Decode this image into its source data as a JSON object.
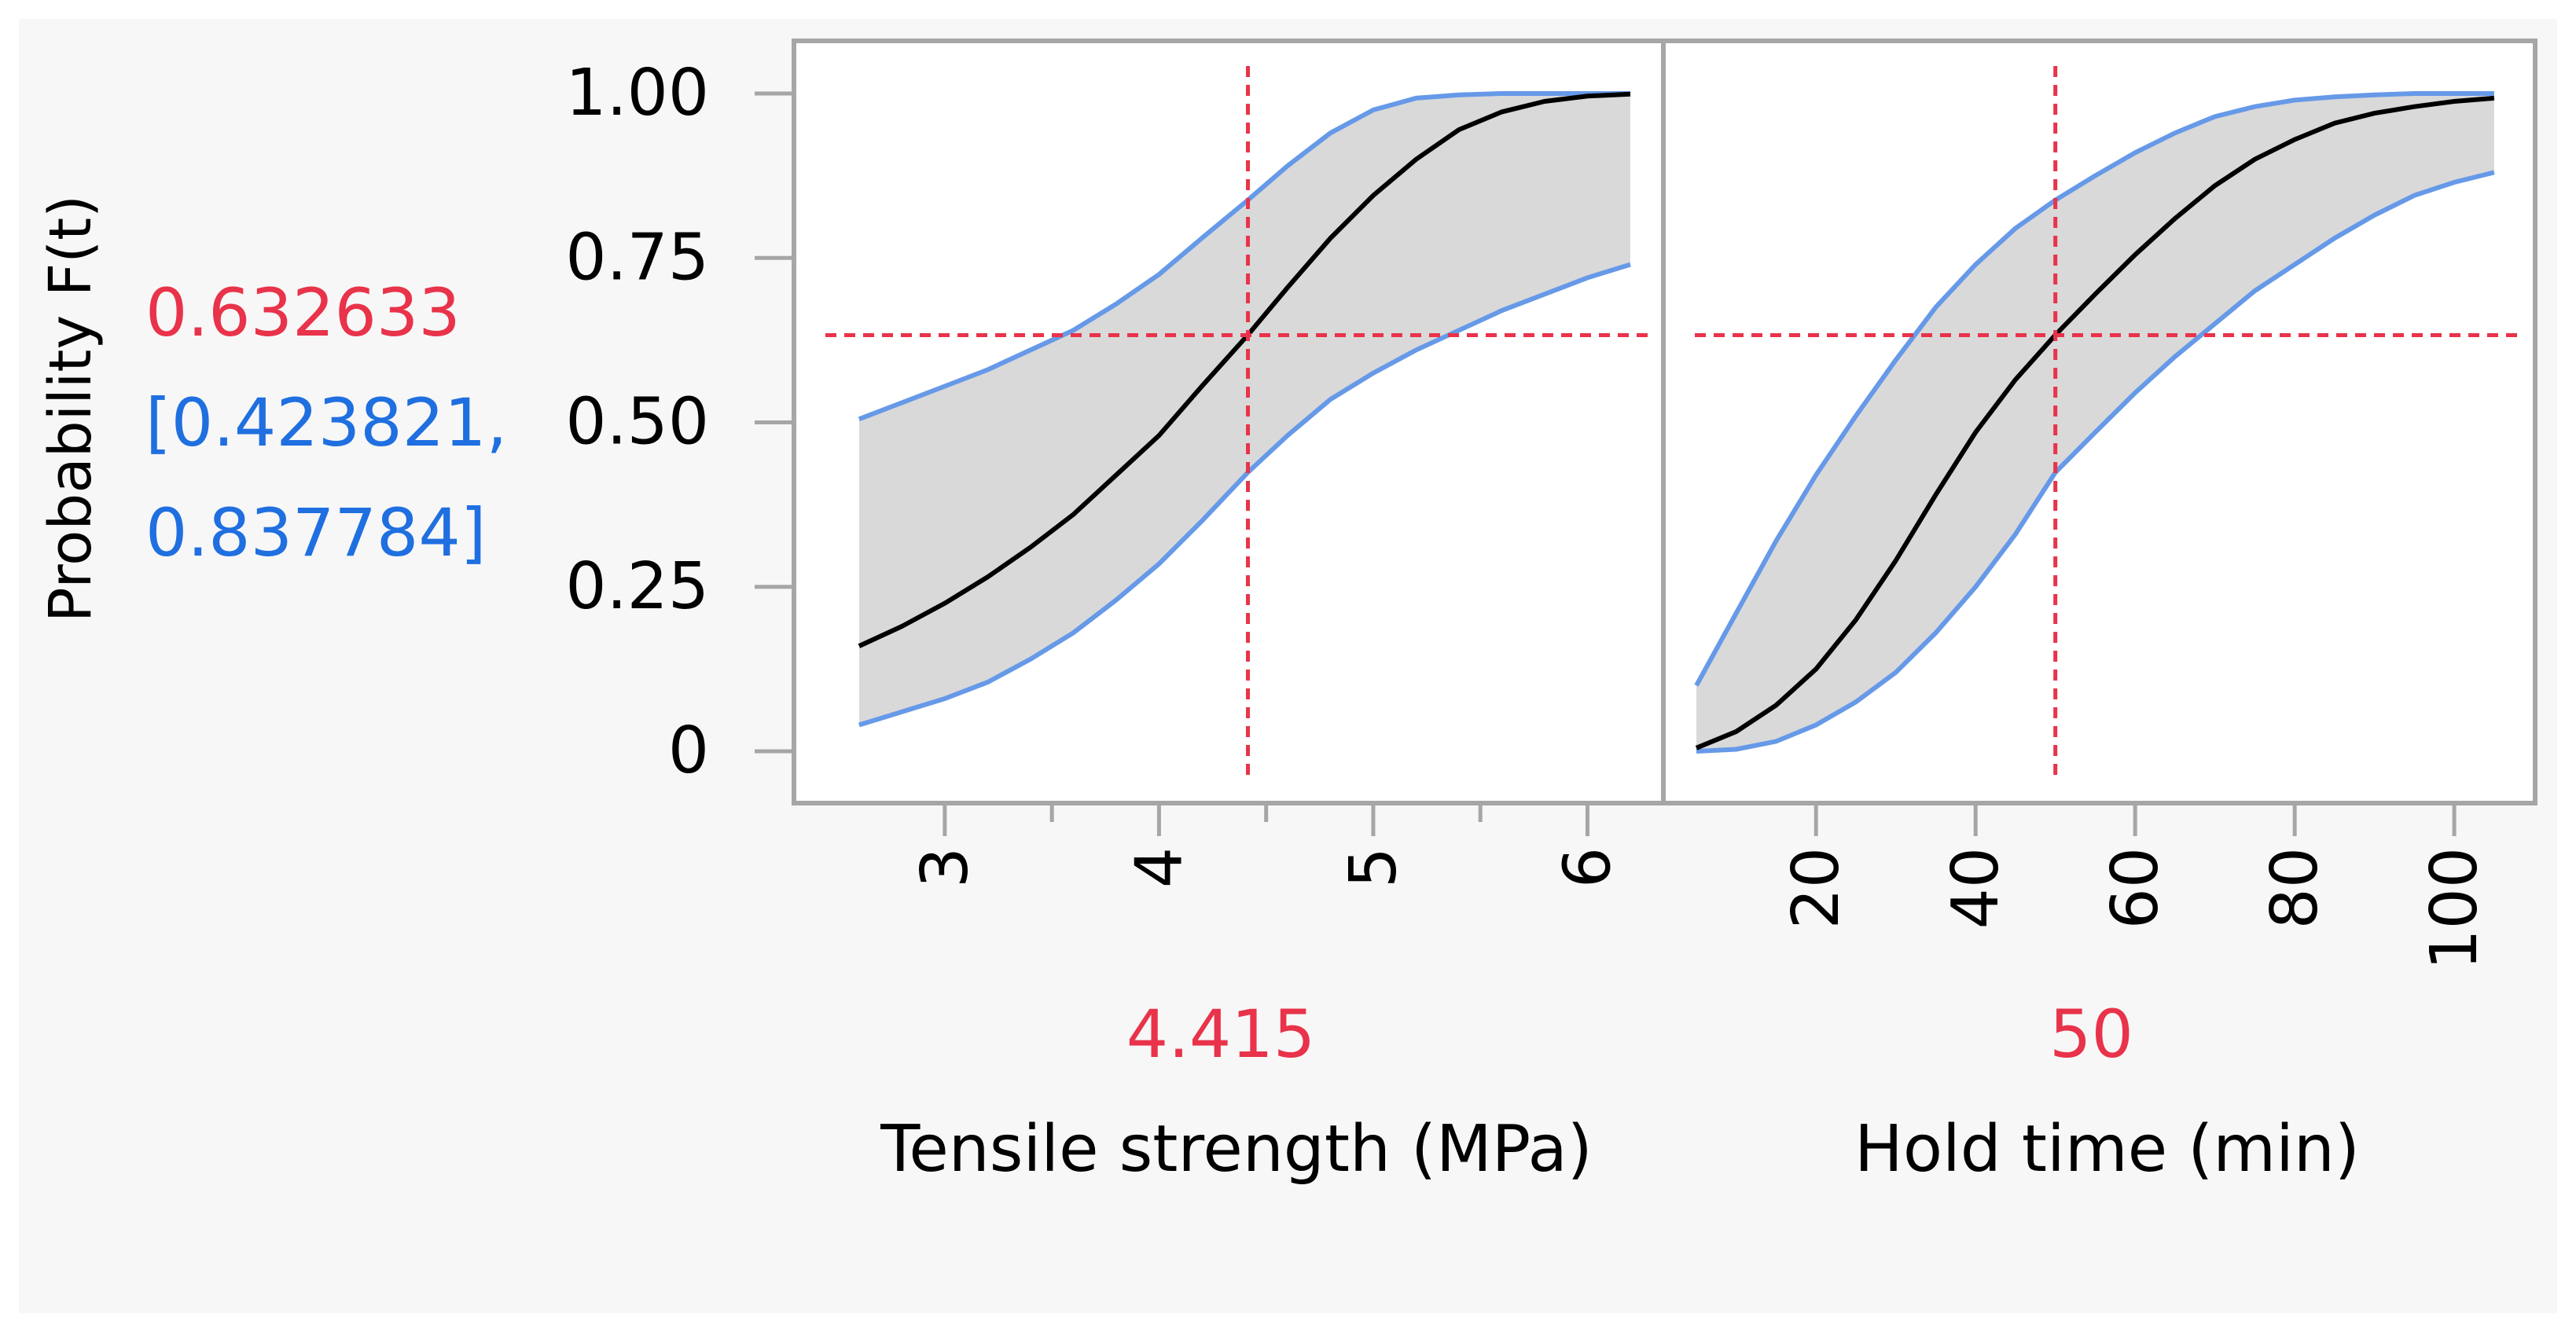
{
  "chart_data": {
    "type": "line",
    "ylabel": "Probability F(t)",
    "ylim": [
      0,
      1.08
    ],
    "yticks": [
      0,
      0.25,
      0.5,
      0.75,
      1.0
    ],
    "ytick_labels": [
      "0",
      "0.25",
      "0.50",
      "0.75",
      "1.00"
    ],
    "current_value": "0.632633",
    "interval_lines": [
      "[0.423821,",
      "0.837784]"
    ],
    "y_ref": 0.632633,
    "colors": {
      "estimate": "#000000",
      "bounds": "#6699e8",
      "band": "#d9d9d9",
      "reference": "#e8334a",
      "value_text": "#e8334a",
      "interval_text": "#1f6fe0",
      "frame": "#a6a6a6",
      "background": "#f7f7f7"
    },
    "panels": [
      {
        "xlabel": "Tensile strength (MPa)",
        "xlim": [
          2.45,
          6.2
        ],
        "xticks": [
          3,
          4,
          5,
          6
        ],
        "minor_ticks": [
          3.5,
          4.5,
          5.5
        ],
        "x_ref": 4.415,
        "x_ref_label": "4.415",
        "x": [
          2.6,
          2.8,
          3.0,
          3.2,
          3.4,
          3.6,
          3.8,
          4.0,
          4.2,
          4.415,
          4.6,
          4.8,
          5.0,
          5.2,
          5.4,
          5.6,
          5.8,
          6.0,
          6.2
        ],
        "series": [
          {
            "values": [
              0.16,
              0.19,
              0.225,
              0.265,
              0.31,
              0.36,
              0.42,
              0.48,
              0.555,
              0.633,
              0.705,
              0.78,
              0.845,
              0.9,
              0.945,
              0.972,
              0.988,
              0.996,
              0.999
            ]
          },
          {
            "values": [
              0.04,
              0.06,
              0.08,
              0.105,
              0.14,
              0.18,
              0.23,
              0.285,
              0.35,
              0.424,
              0.48,
              0.535,
              0.575,
              0.61,
              0.64,
              0.67,
              0.695,
              0.72,
              0.74
            ]
          },
          {
            "values": [
              0.505,
              0.53,
              0.555,
              0.58,
              0.61,
              0.64,
              0.68,
              0.725,
              0.78,
              0.838,
              0.89,
              0.94,
              0.975,
              0.993,
              0.998,
              1.0,
              1.0,
              1.0,
              1.0
            ]
          }
        ]
      },
      {
        "xlabel": "Hold time (min)",
        "xlim": [
          5,
          106
        ],
        "xticks": [
          20,
          40,
          60,
          80,
          100
        ],
        "minor_ticks": [],
        "x_ref": 50,
        "x_ref_label": "50",
        "x": [
          5,
          10,
          15,
          20,
          25,
          30,
          35,
          40,
          45,
          50,
          55,
          60,
          65,
          70,
          75,
          80,
          85,
          90,
          95,
          100,
          105
        ],
        "series": [
          {
            "values": [
              0.005,
              0.03,
              0.07,
              0.125,
              0.2,
              0.29,
              0.39,
              0.485,
              0.565,
              0.633,
              0.695,
              0.755,
              0.81,
              0.86,
              0.9,
              0.93,
              0.955,
              0.97,
              0.98,
              0.988,
              0.993
            ]
          },
          {
            "values": [
              0.0,
              0.003,
              0.015,
              0.04,
              0.075,
              0.12,
              0.18,
              0.25,
              0.33,
              0.424,
              0.485,
              0.545,
              0.6,
              0.65,
              0.7,
              0.74,
              0.78,
              0.815,
              0.845,
              0.865,
              0.88
            ]
          },
          {
            "values": [
              0.1,
              0.21,
              0.32,
              0.42,
              0.51,
              0.595,
              0.675,
              0.74,
              0.795,
              0.838,
              0.875,
              0.91,
              0.94,
              0.965,
              0.98,
              0.99,
              0.995,
              0.998,
              1.0,
              1.0,
              1.0
            ]
          }
        ]
      }
    ]
  }
}
